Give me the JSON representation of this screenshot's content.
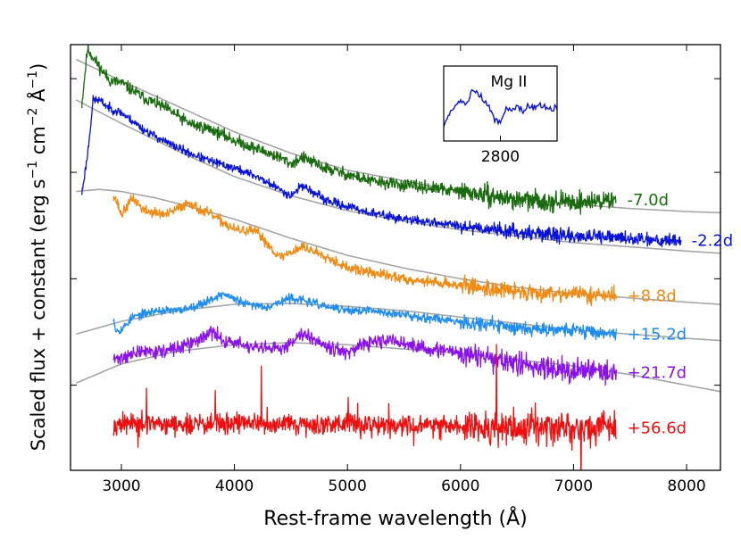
{
  "chart_data": {
    "type": "line",
    "title": "",
    "xlabel": "Rest-frame wavelength (Å)",
    "ylabel_parts": [
      "Scaled flux + constant (erg s",
      "−1",
      " cm",
      "−2",
      " Å",
      "−1",
      ")"
    ],
    "xlim": [
      2550,
      8300
    ],
    "ylim": [
      0,
      10
    ],
    "xticks": [
      3000,
      4000,
      5000,
      6000,
      7000,
      8000
    ],
    "xtick_labels": [
      "3000",
      "4000",
      "5000",
      "6000",
      "7000",
      "8000"
    ],
    "yticks_unlabeled": [
      2.0,
      4.5,
      7.0,
      9.2
    ],
    "grid": false,
    "legend": "none",
    "series": [
      {
        "name": "-7.0d",
        "label": "-7.0d",
        "color": "#1a6b0f",
        "x": [
          2650,
          2700,
          2750,
          2800,
          2900,
          3000,
          3200,
          3400,
          3600,
          3800,
          4000,
          4200,
          4400,
          4500,
          4600,
          4800,
          5000,
          5200,
          5500,
          6000,
          6500,
          7000,
          7380
        ],
        "y": [
          8.6,
          9.9,
          9.7,
          9.5,
          9.15,
          9.1,
          8.75,
          8.5,
          8.15,
          8.0,
          7.75,
          7.55,
          7.35,
          7.2,
          7.35,
          7.1,
          6.95,
          6.8,
          6.7,
          6.55,
          6.35,
          6.3,
          6.35
        ],
        "noise": 0.07,
        "seed": 11
      },
      {
        "name": "-2.2d",
        "label": "-2.2d",
        "color": "#0a14d6",
        "x": [
          2650,
          2700,
          2750,
          2800,
          2900,
          3000,
          3200,
          3400,
          3600,
          3800,
          4000,
          4200,
          4400,
          4500,
          4600,
          4800,
          5000,
          5200,
          5500,
          6000,
          6500,
          7000,
          7500,
          7950
        ],
        "y": [
          6.5,
          7.4,
          8.7,
          8.7,
          8.5,
          8.4,
          8.0,
          7.7,
          7.45,
          7.25,
          7.1,
          6.9,
          6.6,
          6.45,
          6.7,
          6.35,
          6.2,
          6.05,
          5.9,
          5.75,
          5.6,
          5.5,
          5.45,
          5.4
        ],
        "noise": 0.05,
        "seed": 23
      },
      {
        "name": "+8.8d",
        "label": "+8.8d",
        "color": "#f08a12",
        "x": [
          2930,
          2960,
          3000,
          3100,
          3200,
          3400,
          3600,
          3700,
          3800,
          4000,
          4200,
          4400,
          4600,
          4800,
          5000,
          5200,
          5500,
          6000,
          6500,
          7000,
          7380
        ],
        "y": [
          6.5,
          6.3,
          6.0,
          6.4,
          6.1,
          6.0,
          6.3,
          6.1,
          6.0,
          5.65,
          5.6,
          5.0,
          5.25,
          5.05,
          4.75,
          4.65,
          4.5,
          4.35,
          4.2,
          4.15,
          4.1
        ],
        "noise": 0.06,
        "seed": 37
      },
      {
        "name": "+15.2d",
        "label": "+15.2d",
        "color": "#1e8cf0",
        "x": [
          2930,
          2950,
          3000,
          3100,
          3300,
          3500,
          3700,
          3900,
          4100,
          4300,
          4500,
          4600,
          4800,
          5000,
          5200,
          5500,
          6000,
          6500,
          7000,
          7380
        ],
        "y": [
          3.6,
          3.3,
          3.3,
          3.6,
          3.75,
          3.75,
          3.9,
          4.15,
          3.9,
          3.85,
          4.05,
          4.0,
          3.85,
          3.75,
          3.75,
          3.65,
          3.5,
          3.35,
          3.3,
          3.2
        ],
        "noise": 0.05,
        "seed": 53
      },
      {
        "name": "+21.7d",
        "label": "+21.7d",
        "color": "#8a12ea",
        "x": [
          2930,
          3000,
          3200,
          3400,
          3600,
          3800,
          3900,
          4000,
          4200,
          4400,
          4500,
          4600,
          4800,
          5000,
          5200,
          5400,
          5600,
          6000,
          6500,
          7000,
          7380
        ],
        "y": [
          2.6,
          2.65,
          2.8,
          2.8,
          2.95,
          3.25,
          3.05,
          3.0,
          2.85,
          2.85,
          3.0,
          3.25,
          2.95,
          2.75,
          3.0,
          3.05,
          2.9,
          2.75,
          2.5,
          2.35,
          2.3
        ],
        "noise": 0.08,
        "seed": 71
      },
      {
        "name": "+56.6d",
        "label": "+56.6d",
        "color": "#ee1010",
        "x": [
          2930,
          3500,
          4000,
          4500,
          5000,
          5500,
          6000,
          6500,
          7000,
          7380
        ],
        "y": [
          1.1,
          1.05,
          1.1,
          1.05,
          1.1,
          1.05,
          1.05,
          1.0,
          1.0,
          1.0
        ],
        "noise": 0.12,
        "seed": 97
      }
    ],
    "model_curves": [
      {
        "name": "model-1",
        "color": "#a6a6a6",
        "x": [
          2600,
          3000,
          3500,
          4000,
          4500,
          5000,
          5500,
          6000,
          6500,
          7000,
          7500,
          8000,
          8300
        ],
        "y": [
          9.65,
          9.15,
          8.55,
          7.95,
          7.45,
          7.05,
          6.8,
          6.55,
          6.4,
          6.25,
          6.15,
          6.08,
          6.05
        ]
      },
      {
        "name": "model-2",
        "color": "#a6a6a6",
        "x": [
          2600,
          3000,
          3500,
          4000,
          4500,
          5000,
          5500,
          6000,
          6500,
          7000,
          7500,
          8000,
          8300
        ],
        "y": [
          8.7,
          8.15,
          7.5,
          6.9,
          6.45,
          6.1,
          5.85,
          5.65,
          5.5,
          5.35,
          5.25,
          5.15,
          5.1
        ]
      },
      {
        "name": "model-3",
        "color": "#a6a6a6",
        "x": [
          2600,
          2800,
          3000,
          3300,
          3600,
          4000,
          4500,
          5000,
          5500,
          6000,
          6500,
          7000,
          7500,
          8000,
          8300
        ],
        "y": [
          6.55,
          6.6,
          6.55,
          6.4,
          6.2,
          5.9,
          5.45,
          5.05,
          4.75,
          4.5,
          4.3,
          4.15,
          4.05,
          3.95,
          3.9
        ]
      },
      {
        "name": "model-4",
        "color": "#a6a6a6",
        "x": [
          2600,
          3000,
          3500,
          4000,
          4500,
          5000,
          5500,
          6000,
          6500,
          7000,
          7500,
          8000,
          8300
        ],
        "y": [
          3.2,
          3.5,
          3.75,
          3.9,
          3.92,
          3.85,
          3.75,
          3.6,
          3.45,
          3.3,
          3.2,
          3.1,
          3.05
        ]
      },
      {
        "name": "model-5",
        "color": "#a6a6a6",
        "x": [
          2600,
          3000,
          3500,
          4000,
          4500,
          5000,
          5500,
          6000,
          6500,
          7000,
          7500,
          8000,
          8300
        ],
        "y": [
          2.05,
          2.5,
          2.8,
          2.95,
          3.0,
          2.95,
          2.85,
          2.75,
          2.6,
          2.45,
          2.25,
          2.0,
          1.85
        ]
      }
    ],
    "inset": {
      "title": "Mg II",
      "color": "#0a14d6",
      "xlim": [
        2700,
        2900
      ],
      "xticks": [
        2800
      ],
      "xtick_labels": [
        "2800"
      ],
      "x": [
        2700,
        2710,
        2720,
        2730,
        2740,
        2750,
        2760,
        2770,
        2780,
        2790,
        2800,
        2810,
        2820,
        2830,
        2840,
        2850,
        2860,
        2870,
        2880,
        2890,
        2900
      ],
      "y": [
        0.15,
        0.45,
        0.55,
        0.7,
        0.6,
        0.95,
        0.85,
        0.7,
        0.55,
        0.3,
        0.25,
        0.55,
        0.5,
        0.6,
        0.45,
        0.6,
        0.55,
        0.6,
        0.55,
        0.5,
        0.55
      ],
      "noise": 0.04,
      "seed": 5
    }
  }
}
